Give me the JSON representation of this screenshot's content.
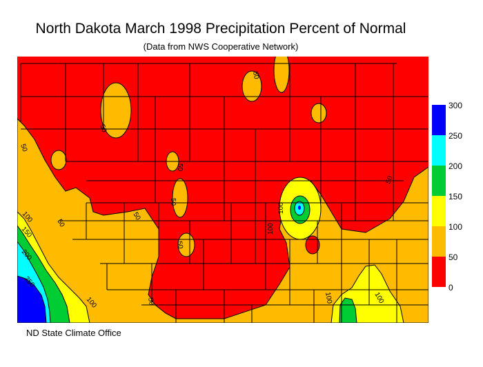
{
  "map": {
    "title": "North Dakota March 1998 Precipitation Percent of Normal",
    "subtitle": "(Data from NWS Cooperative Network)",
    "footer": "ND State Climate Office",
    "contour_labels": [
      "50",
      "50",
      "50",
      "50",
      "50",
      "50",
      "50",
      "50",
      "50",
      "50",
      "100",
      "100",
      "100",
      "100",
      "100",
      "100",
      "150",
      "200",
      "250"
    ],
    "legend": [
      {
        "label": "300",
        "color": "#0000ff"
      },
      {
        "label": "250",
        "color": "#00ffff"
      },
      {
        "label": "200",
        "color": "#00cc33"
      },
      {
        "label": "150",
        "color": "#ffff00"
      },
      {
        "label": "100",
        "color": "#ffbb00"
      },
      {
        "label": "50",
        "color": "#ff0000"
      },
      {
        "label": "0",
        "color": "#ff0000"
      }
    ]
  }
}
